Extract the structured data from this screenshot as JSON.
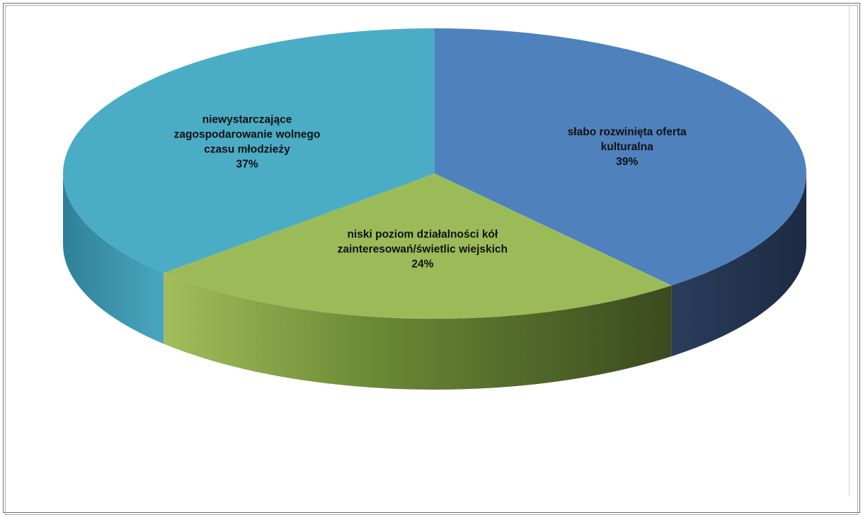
{
  "chart_data": {
    "type": "pie",
    "style": "3d",
    "title": "",
    "slices": [
      {
        "label_lines": [
          "słabo rozwinięta oferta",
          "kulturalna"
        ],
        "percent_label": "39%",
        "value": 39,
        "color": "#4f81bd"
      },
      {
        "label_lines": [
          "niski poziom działalności kół",
          "zainteresowań/świetlic wiejskich"
        ],
        "percent_label": "24%",
        "value": 24,
        "color": "#9bbb59"
      },
      {
        "label_lines": [
          "niewystarczające",
          "zagospodarowanie wolnego",
          "czasu młodzieży"
        ],
        "percent_label": "37%",
        "value": 37,
        "color": "#4bacc6"
      }
    ],
    "legend": "none",
    "data_labels": "on-slice"
  }
}
